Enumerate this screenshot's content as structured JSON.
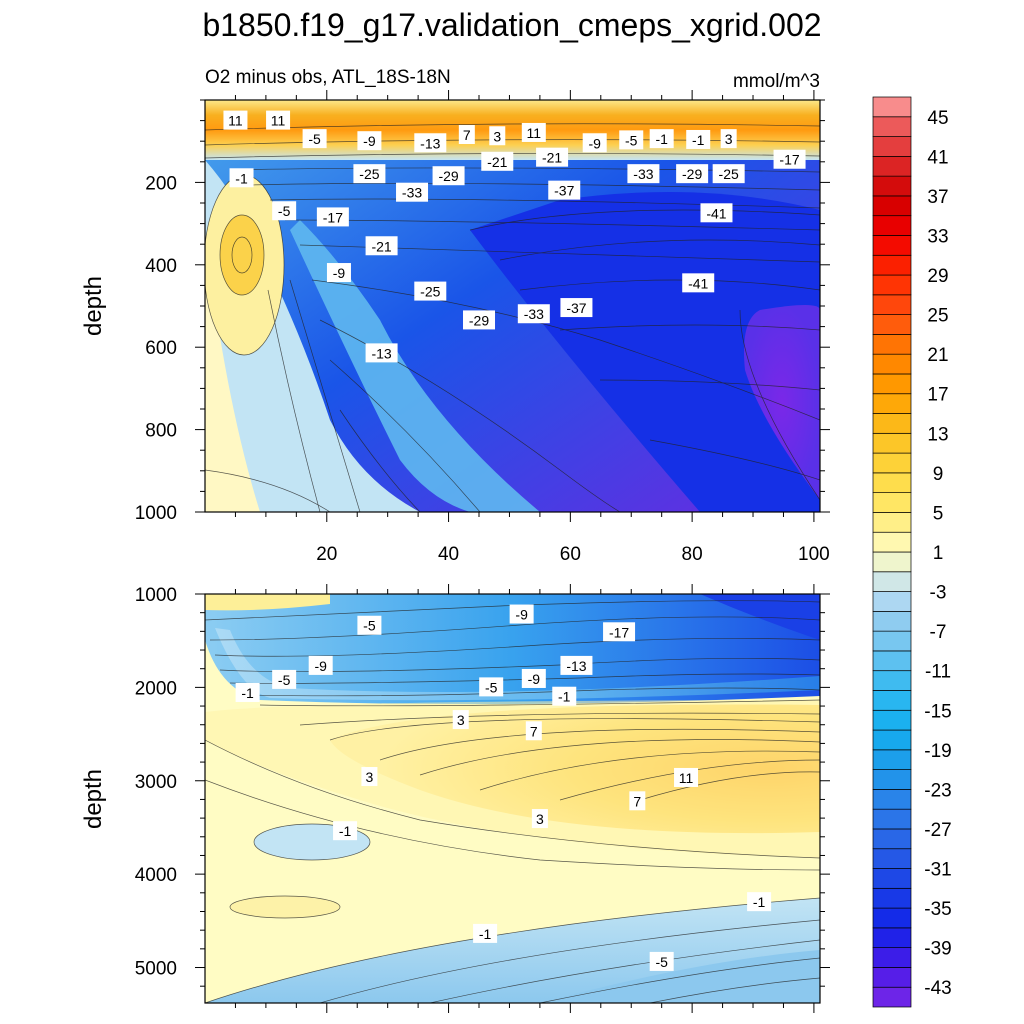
{
  "chart_data": {
    "type": "heatmap",
    "title": "b1850.f19_g17.validation_cmeps_xgrid.002",
    "subtitle_left": "O2 minus obs, ATL_18S-18N",
    "subtitle_right": "mmol/m^3",
    "colorbar": {
      "levels": [
        -45,
        -43,
        -41,
        -39,
        -37,
        -35,
        -33,
        -31,
        -29,
        -27,
        -25,
        -23,
        -21,
        -19,
        -17,
        -15,
        -13,
        -11,
        -9,
        -7,
        -5,
        -3,
        -1,
        1,
        3,
        5,
        7,
        9,
        11,
        13,
        15,
        17,
        19,
        21,
        23,
        25,
        27,
        29,
        31,
        33,
        35,
        37,
        39,
        41,
        43,
        45,
        47
      ],
      "tick_labels": [
        "45",
        "41",
        "37",
        "33",
        "29",
        "25",
        "21",
        "17",
        "13",
        "9",
        "5",
        "1",
        "-3",
        "-7",
        "-11",
        "-15",
        "-19",
        "-23",
        "-27",
        "-31",
        "-35",
        "-39",
        "-43"
      ]
    },
    "panels": [
      {
        "name": "upper",
        "xlabel": "",
        "ylabel": "depth",
        "xlim": [
          0,
          101
        ],
        "ylim": [
          1000,
          0
        ],
        "xticks": [
          "20",
          "40",
          "60",
          "80",
          "100"
        ],
        "yticks": [
          "200",
          "400",
          "600",
          "800",
          "1000"
        ],
        "contour_labels": [
          {
            "text": "11",
            "x": 5,
            "y": 50
          },
          {
            "text": "11",
            "x": 12,
            "y": 50
          },
          {
            "text": "-5",
            "x": 18,
            "y": 95
          },
          {
            "text": "-9",
            "x": 27,
            "y": 100
          },
          {
            "text": "-13",
            "x": 37,
            "y": 105
          },
          {
            "text": "7",
            "x": 43,
            "y": 85
          },
          {
            "text": "3",
            "x": 48,
            "y": 88
          },
          {
            "text": "11",
            "x": 54,
            "y": 80
          },
          {
            "text": "-9",
            "x": 64,
            "y": 105
          },
          {
            "text": "-5",
            "x": 70,
            "y": 98
          },
          {
            "text": "-1",
            "x": 75,
            "y": 95
          },
          {
            "text": "-1",
            "x": 81,
            "y": 97
          },
          {
            "text": "3",
            "x": 86,
            "y": 95
          },
          {
            "text": "-17",
            "x": 96,
            "y": 145
          },
          {
            "text": "-21",
            "x": 48,
            "y": 150
          },
          {
            "text": "-21",
            "x": 57,
            "y": 140
          },
          {
            "text": "-25",
            "x": 27,
            "y": 180
          },
          {
            "text": "-29",
            "x": 40,
            "y": 185
          },
          {
            "text": "-33",
            "x": 34,
            "y": 225
          },
          {
            "text": "-37",
            "x": 59,
            "y": 220
          },
          {
            "text": "-33",
            "x": 72,
            "y": 180
          },
          {
            "text": "-29",
            "x": 80,
            "y": 180
          },
          {
            "text": "-25",
            "x": 86,
            "y": 180
          },
          {
            "text": "-41",
            "x": 84,
            "y": 275
          },
          {
            "text": "-41",
            "x": 81,
            "y": 445
          },
          {
            "text": "-1",
            "x": 6,
            "y": 190
          },
          {
            "text": "-5",
            "x": 13,
            "y": 270
          },
          {
            "text": "-17",
            "x": 21,
            "y": 285
          },
          {
            "text": "-21",
            "x": 29,
            "y": 355
          },
          {
            "text": "-9",
            "x": 22,
            "y": 420
          },
          {
            "text": "-25",
            "x": 37,
            "y": 465
          },
          {
            "text": "-29",
            "x": 45,
            "y": 535
          },
          {
            "text": "-33",
            "x": 54,
            "y": 520
          },
          {
            "text": "-37",
            "x": 61,
            "y": 505
          },
          {
            "text": "-13",
            "x": 29,
            "y": 615
          }
        ]
      },
      {
        "name": "lower",
        "xlabel": "",
        "ylabel": "depth",
        "xlim": [
          0,
          101
        ],
        "ylim": [
          5380,
          1000
        ],
        "yticks": [
          "1000",
          "2000",
          "3000",
          "4000",
          "5000"
        ],
        "contour_labels": [
          {
            "text": "-9",
            "x": 52,
            "y": 1220
          },
          {
            "text": "-5",
            "x": 27,
            "y": 1340
          },
          {
            "text": "-17",
            "x": 68,
            "y": 1410
          },
          {
            "text": "-9",
            "x": 19,
            "y": 1770
          },
          {
            "text": "-5",
            "x": 13,
            "y": 1920
          },
          {
            "text": "-13",
            "x": 61,
            "y": 1770
          },
          {
            "text": "-9",
            "x": 54,
            "y": 1910
          },
          {
            "text": "-5",
            "x": 47,
            "y": 2000
          },
          {
            "text": "-1",
            "x": 7,
            "y": 2060
          },
          {
            "text": "-1",
            "x": 59,
            "y": 2100
          },
          {
            "text": "3",
            "x": 42,
            "y": 2350
          },
          {
            "text": "7",
            "x": 54,
            "y": 2470
          },
          {
            "text": "3",
            "x": 27,
            "y": 2960
          },
          {
            "text": "11",
            "x": 79,
            "y": 2970
          },
          {
            "text": "7",
            "x": 71,
            "y": 3220
          },
          {
            "text": "3",
            "x": 55,
            "y": 3410
          },
          {
            "text": "-1",
            "x": 23,
            "y": 3540
          },
          {
            "text": "-1",
            "x": 91,
            "y": 4300
          },
          {
            "text": "-1",
            "x": 46,
            "y": 4640
          },
          {
            "text": "-5",
            "x": 75,
            "y": 4940
          }
        ]
      }
    ]
  }
}
